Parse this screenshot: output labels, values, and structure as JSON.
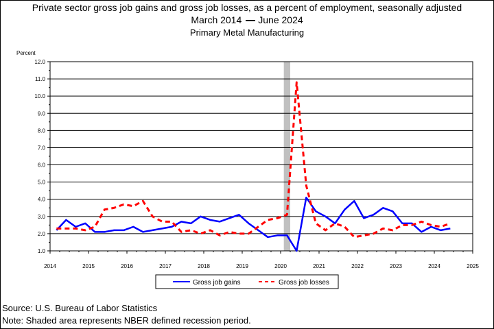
{
  "header": {
    "title": "Private sector gross job gains and gross job losses, as a percent of employment, seasonally adjusted",
    "subtitle_start": "March 2014",
    "subtitle_end": "June 2024",
    "subsubtitle": "Primary Metal Manufacturing"
  },
  "footer": {
    "source": "Source: U.S. Bureau of Labor Statistics",
    "note": "Note: Shaded area represents NBER defined recession period."
  },
  "colors": {
    "gains": "#0000ff",
    "losses": "#ff0000",
    "recession": "#c0c0c0"
  },
  "chart_data": {
    "type": "line",
    "ylabel": "Percent",
    "xlim": [
      2014,
      2025
    ],
    "ylim": [
      1.0,
      12.0
    ],
    "x_ticks": [
      "2014",
      "2015",
      "2016",
      "2017",
      "2018",
      "2019",
      "2020",
      "2021",
      "2022",
      "2023",
      "2024",
      "2025"
    ],
    "y_ticks": [
      "1.0",
      "2.0",
      "3.0",
      "4.0",
      "5.0",
      "6.0",
      "7.0",
      "8.0",
      "9.0",
      "10.0",
      "11.0",
      "12.0"
    ],
    "grid": "horizontal",
    "legend_position": "bottom",
    "recession": {
      "start": "2020-02",
      "end": "2020-04"
    },
    "x": [
      "2014-03",
      "2014-06",
      "2014-09",
      "2014-12",
      "2015-03",
      "2015-06",
      "2015-09",
      "2015-12",
      "2016-03",
      "2016-06",
      "2016-09",
      "2016-12",
      "2017-03",
      "2017-06",
      "2017-09",
      "2017-12",
      "2018-03",
      "2018-06",
      "2018-09",
      "2018-12",
      "2019-03",
      "2019-06",
      "2019-09",
      "2019-12",
      "2020-03",
      "2020-06",
      "2020-09",
      "2020-12",
      "2021-03",
      "2021-06",
      "2021-09",
      "2021-12",
      "2022-03",
      "2022-06",
      "2022-09",
      "2022-12",
      "2023-03",
      "2023-06",
      "2023-09",
      "2023-12",
      "2024-03",
      "2024-06"
    ],
    "series": [
      {
        "name": "Gross job gains",
        "style": "solid",
        "values": [
          2.2,
          2.8,
          2.4,
          2.6,
          2.1,
          2.1,
          2.2,
          2.2,
          2.4,
          2.1,
          2.2,
          2.3,
          2.4,
          2.7,
          2.6,
          3.0,
          2.8,
          2.7,
          2.9,
          3.1,
          2.6,
          2.2,
          1.8,
          1.9,
          1.9,
          1.0,
          4.1,
          3.3,
          3.0,
          2.6,
          3.4,
          3.9,
          2.9,
          3.1,
          3.5,
          3.3,
          2.6,
          2.6,
          2.1,
          2.4,
          2.2,
          2.3
        ]
      },
      {
        "name": "Gross job losses",
        "style": "dashed",
        "values": [
          2.3,
          2.3,
          2.3,
          2.2,
          2.4,
          3.4,
          3.5,
          3.7,
          3.6,
          3.9,
          3.0,
          2.7,
          2.7,
          2.1,
          2.2,
          2.0,
          2.2,
          1.9,
          2.1,
          2.0,
          2.0,
          2.4,
          2.8,
          2.9,
          3.1,
          10.8,
          4.8,
          2.6,
          2.2,
          2.6,
          2.4,
          1.8,
          1.9,
          2.0,
          2.3,
          2.2,
          2.5,
          2.5,
          2.7,
          2.5,
          2.4,
          2.6
        ]
      }
    ]
  }
}
